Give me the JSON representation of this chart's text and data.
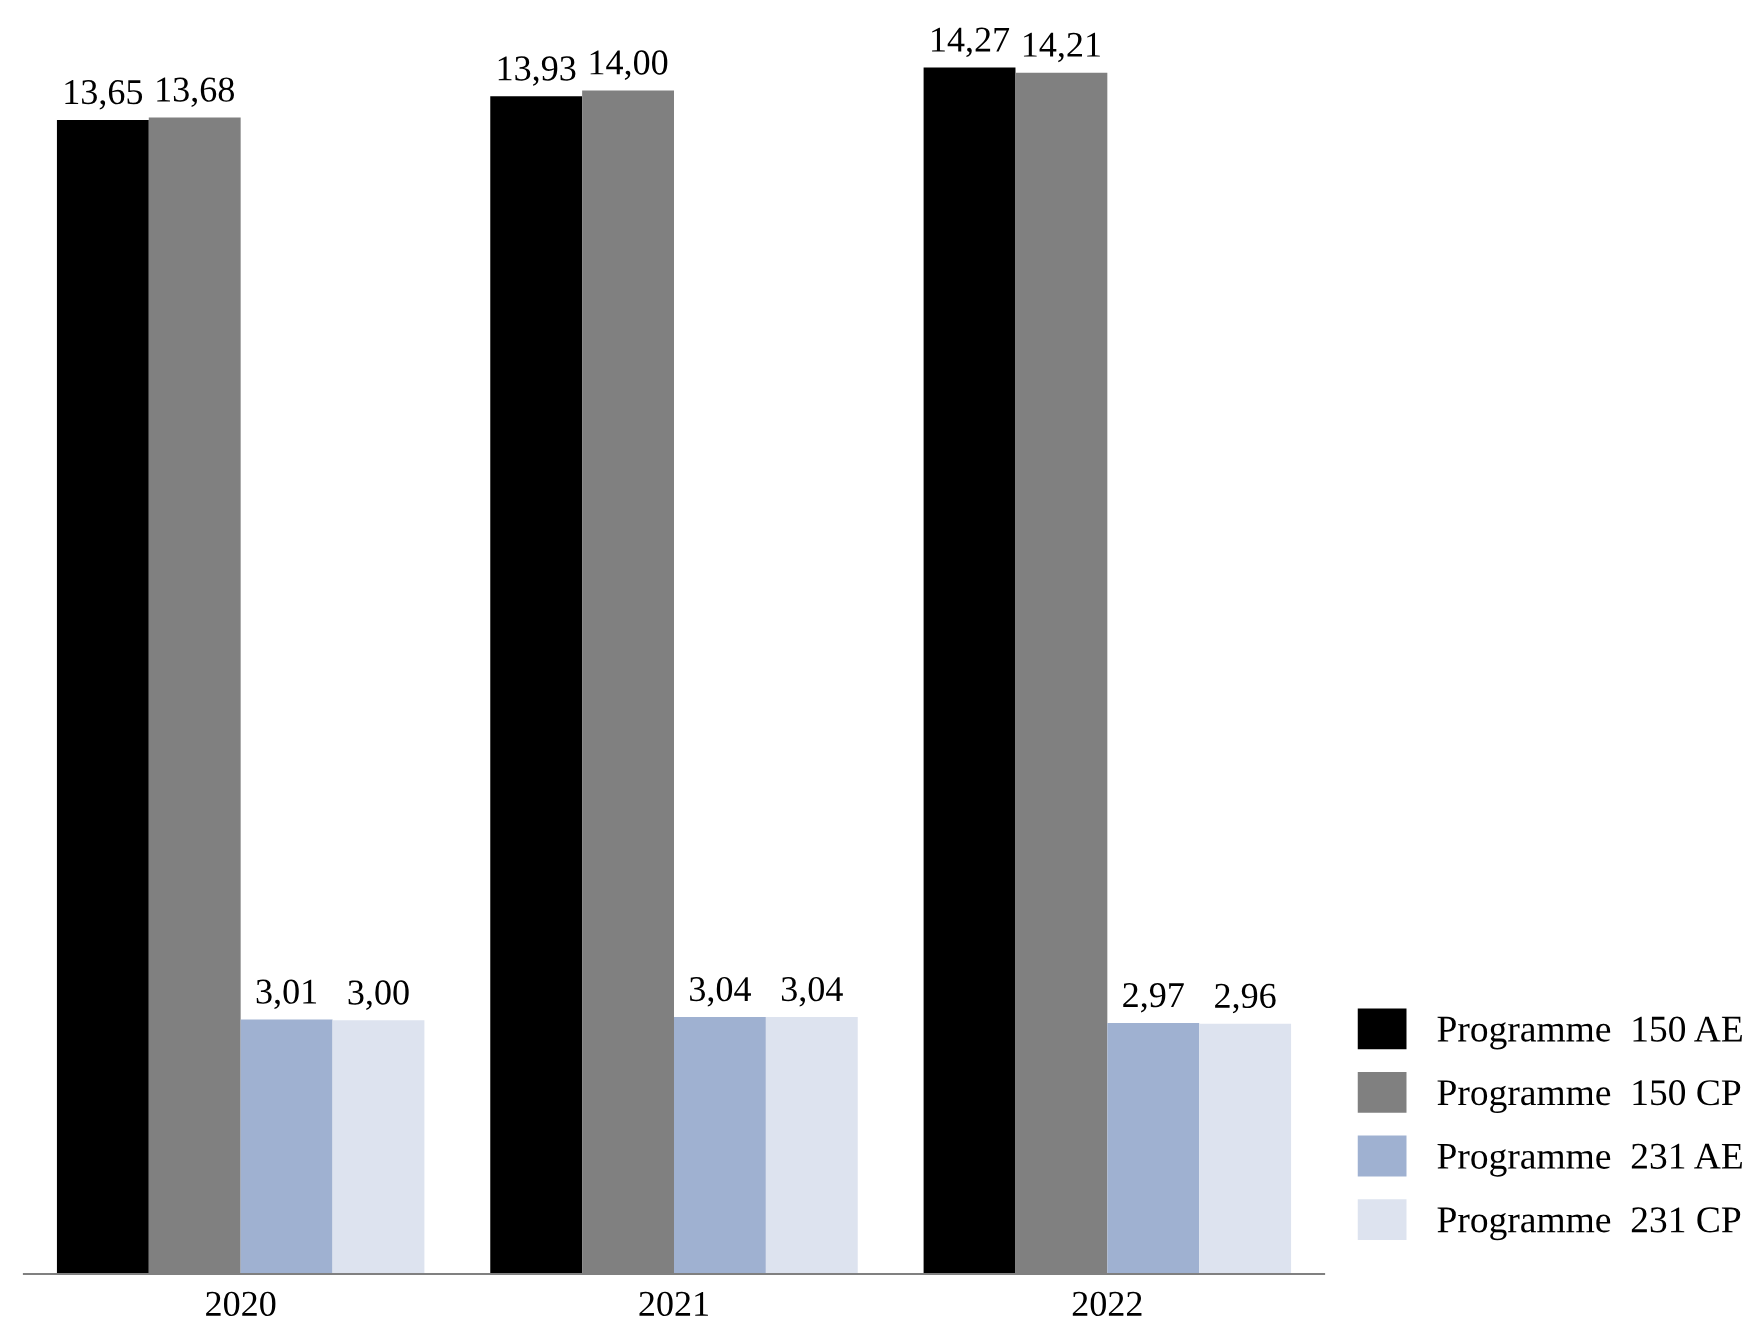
{
  "chart_data": {
    "type": "bar",
    "categories": [
      "2020",
      "2021",
      "2022"
    ],
    "series": [
      {
        "name": "Programme  150 AE",
        "color": "#000000",
        "values": [
          13.65,
          13.93,
          14.27
        ],
        "value_labels": [
          "13,65",
          "13,93",
          "14,27"
        ]
      },
      {
        "name": "Programme  150 CP",
        "color": "#808080",
        "values": [
          13.68,
          14.0,
          14.21
        ],
        "value_labels": [
          "13,68",
          "14,00",
          "14,21"
        ]
      },
      {
        "name": "Programme  231 AE",
        "color": "#9fb1d1",
        "values": [
          3.01,
          3.04,
          2.97
        ],
        "value_labels": [
          "3,01",
          "3,04",
          "2,97"
        ]
      },
      {
        "name": "Programme  231 CP",
        "color": "#dde3ef",
        "values": [
          3.0,
          3.04,
          2.96
        ],
        "value_labels": [
          "3,00",
          "3,04",
          "2,96"
        ]
      }
    ],
    "legend": "bottom right",
    "grid": false
  }
}
